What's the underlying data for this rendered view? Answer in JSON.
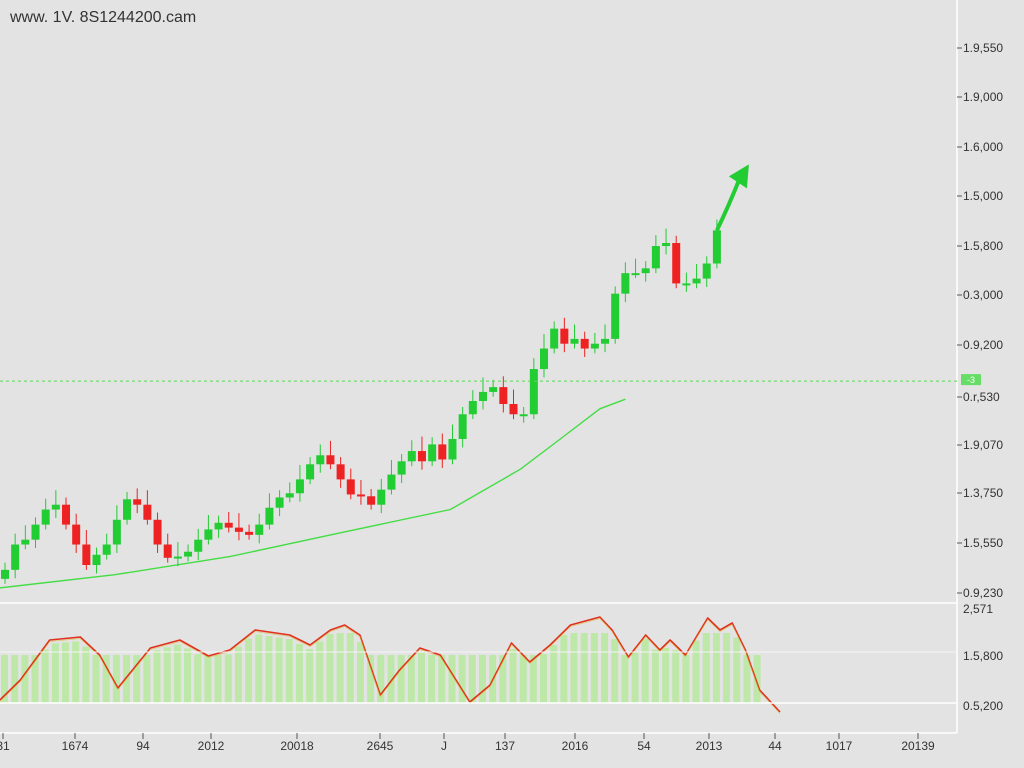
{
  "title": "www. 1V. 8S1244200.cam",
  "chart_data": {
    "type": "candlestick",
    "colors": {
      "up": "#22cc33",
      "down": "#ee2222",
      "ma": "#44dd44",
      "oscillator": "#e03020",
      "histogram": "#bde8a8",
      "background": "#e3e3e3",
      "level_line": "#55dd55"
    },
    "price_ylim": [
      0,
      100
    ],
    "closes": [
      5.5,
      9.7,
      10.5,
      13,
      15.5,
      16.3,
      13,
      9.7,
      6.3,
      8,
      9.7,
      13.8,
      17.2,
      16.3,
      13.8,
      9.7,
      7.5,
      7.7,
      8.5,
      10.5,
      12.2,
      13.3,
      12.5,
      11.8,
      11.3,
      13,
      15.8,
      17.5,
      18.2,
      20.5,
      23,
      24.5,
      23,
      20.5,
      18,
      17.7,
      16.3,
      18.8,
      21.3,
      23.5,
      25.2,
      23.5,
      26.3,
      23.8,
      27.2,
      31.3,
      33.5,
      35,
      35.8,
      33,
      31.3,
      31.3,
      38.8,
      42.2,
      45.5,
      43,
      43.8,
      42.2,
      43,
      43.8,
      51.3,
      54.7,
      54.7,
      55.5,
      59.2,
      59.7,
      53,
      53,
      53.8,
      56.3,
      61.8
    ],
    "moving_average": [
      [
        -0.5,
        2.5
      ],
      [
        10.8,
        4.7
      ],
      [
        22.1,
        7.7
      ],
      [
        32,
        11.3
      ],
      [
        43.8,
        15.5
      ],
      [
        50.7,
        22.2
      ],
      [
        54.6,
        27.2
      ],
      [
        58.5,
        32.2
      ],
      [
        61,
        33.8
      ]
    ],
    "level_line": {
      "value": 36.8,
      "label": "-3"
    },
    "trend_arrow": "up",
    "y_tick_labels": [
      "1.9,550",
      "1.9,000",
      "1.6,000",
      "1.5,000",
      "1.5,800",
      "0.3,000",
      "0.9,200",
      "0.r,530",
      "1.9,070",
      "1.3,750",
      "1.5,550",
      "0.9,230"
    ],
    "oscillator": {
      "ylim": [
        0,
        100
      ],
      "points": [
        [
          -0.5,
          3
        ],
        [
          1.5,
          23
        ],
        [
          4.4,
          63
        ],
        [
          7.4,
          66
        ],
        [
          9.3,
          48
        ],
        [
          11.1,
          15
        ],
        [
          14.3,
          55
        ],
        [
          17.2,
          63
        ],
        [
          20,
          47
        ],
        [
          22.1,
          53
        ],
        [
          24.6,
          73
        ],
        [
          28,
          68
        ],
        [
          30,
          58
        ],
        [
          32,
          73
        ],
        [
          33.4,
          78
        ],
        [
          34.9,
          68
        ],
        [
          36.9,
          8
        ],
        [
          38.8,
          33
        ],
        [
          40.8,
          55
        ],
        [
          42.8,
          48
        ],
        [
          45.7,
          1
        ],
        [
          47.7,
          18
        ],
        [
          49.8,
          60
        ],
        [
          51.6,
          41
        ],
        [
          53.6,
          58
        ],
        [
          55.6,
          78
        ],
        [
          58.5,
          86
        ],
        [
          59.7,
          73
        ],
        [
          61.3,
          46
        ],
        [
          63,
          68
        ],
        [
          64.4,
          53
        ],
        [
          65.4,
          63
        ],
        [
          66.9,
          48
        ],
        [
          69.1,
          85
        ],
        [
          70.3,
          73
        ],
        [
          71.5,
          80
        ],
        [
          72.8,
          53
        ],
        [
          74.2,
          13
        ],
        [
          76.2,
          -9
        ]
      ],
      "y_tick_labels": [
        "2,571",
        "1.5,800",
        "0.5,200"
      ]
    },
    "x_tick_labels": [
      "31",
      "1674",
      "94",
      "2012",
      "20018",
      "2645",
      "J",
      "137",
      "2016",
      "54",
      "2013",
      "44",
      "1017",
      "20139"
    ]
  }
}
